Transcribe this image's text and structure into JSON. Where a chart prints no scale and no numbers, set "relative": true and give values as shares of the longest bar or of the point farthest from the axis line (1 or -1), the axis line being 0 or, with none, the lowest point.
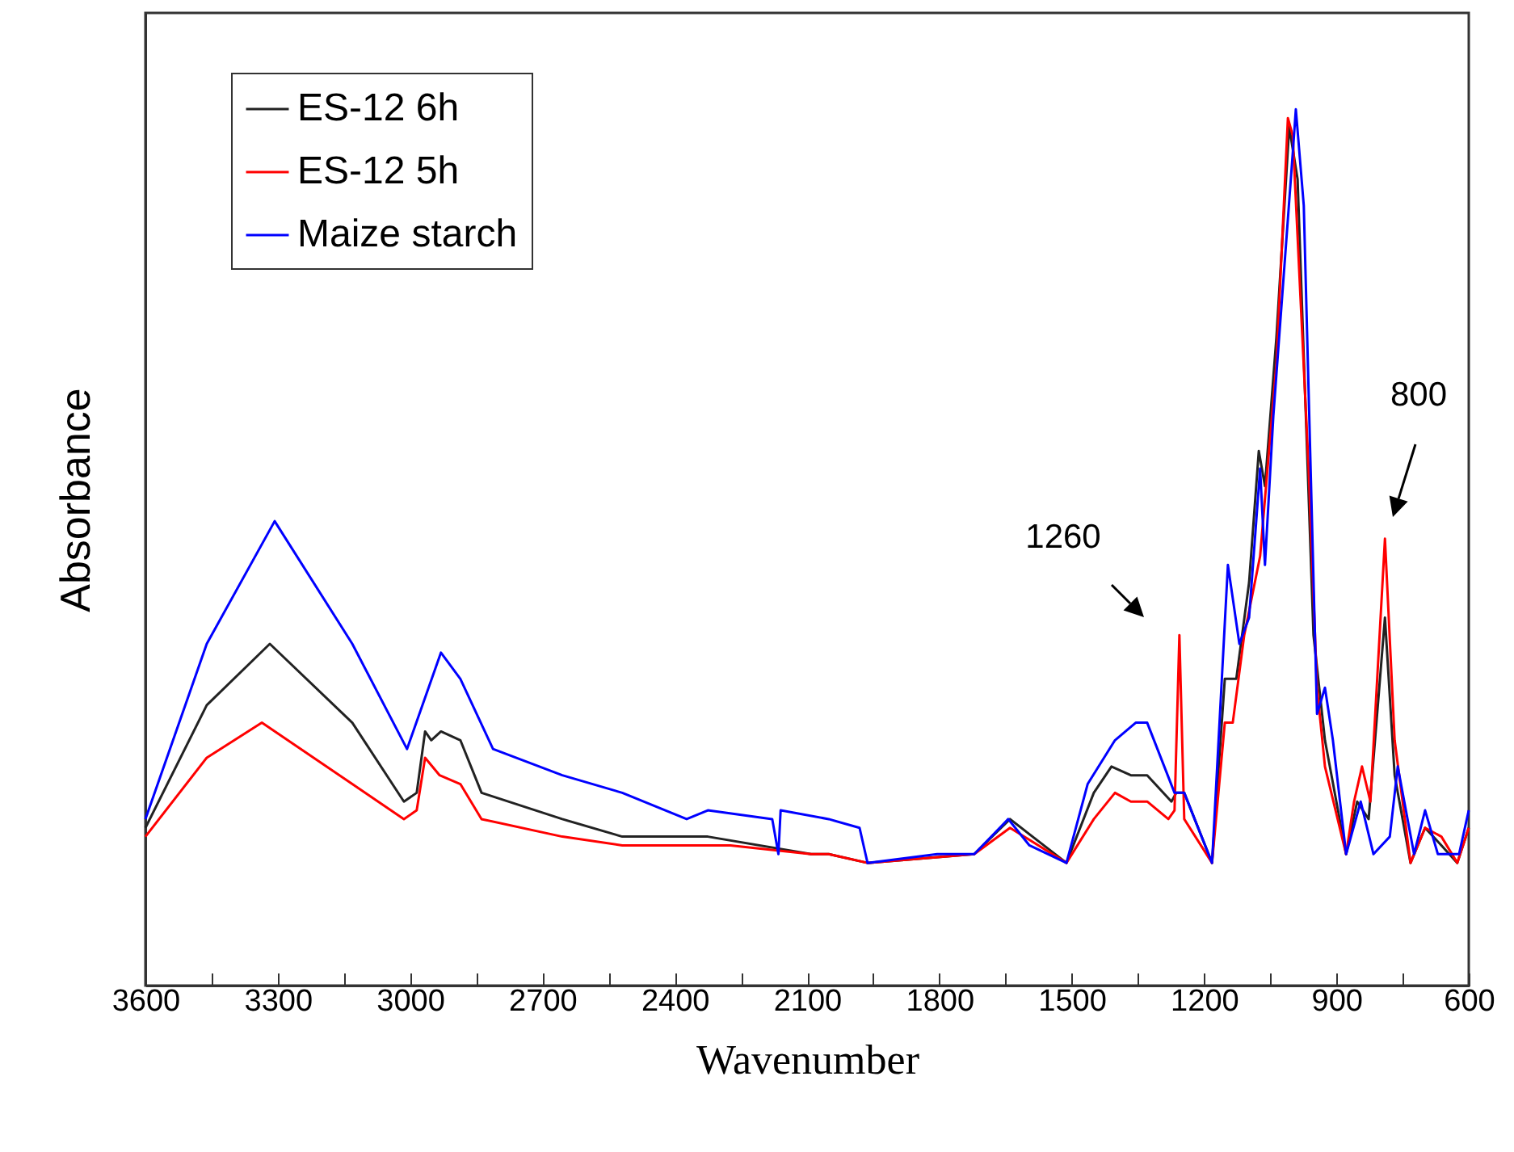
{
  "chart_data": {
    "type": "line",
    "xlabel": "Wavenumber",
    "ylabel": "Absorbance",
    "relative": true,
    "legend": "top left",
    "line_style": "solid",
    "marker": "none",
    "grid": false,
    "xlim": [
      3600,
      600
    ],
    "xticks": [
      3600,
      {
        "value": 3450,
        "label": null
      },
      3300,
      {
        "value": 3150,
        "label": null
      },
      3000,
      {
        "value": 2850,
        "label": null
      },
      2700,
      {
        "value": 2550,
        "label": null
      },
      2400,
      {
        "value": 2250,
        "label": null
      },
      2100,
      {
        "value": 1950,
        "label": null
      },
      1800,
      {
        "value": 1650,
        "label": null
      },
      1500,
      {
        "value": 1350,
        "label": null
      },
      1200,
      {
        "value": 1050,
        "label": null
      },
      900,
      {
        "value": 750,
        "label": null
      },
      600
    ],
    "annotations": [
      "1260",
      "800"
    ],
    "series": [
      {
        "name": "ES-12 6h",
        "color": "#222222",
        "x": [
          3600,
          3461,
          3318,
          3131,
          3014,
          2985,
          2966,
          2952,
          2930,
          2886,
          2838,
          2655,
          2519,
          2325,
          2091,
          2051,
          1963,
          1721,
          1640,
          1512,
          1450,
          1410,
          1366,
          1329,
          1274,
          1263,
          1245,
          1182,
          1153,
          1127,
          1098,
          1076,
          1062,
          1036,
          1007,
          988,
          952,
          926,
          878,
          853,
          827,
          790,
          768,
          732,
          699,
          662,
          626,
          600
        ],
        "values": [
          0.18,
          0.32,
          0.39,
          0.3,
          0.21,
          0.22,
          0.29,
          0.28,
          0.29,
          0.28,
          0.22,
          0.19,
          0.17,
          0.17,
          0.15,
          0.15,
          0.14,
          0.15,
          0.19,
          0.14,
          0.22,
          0.25,
          0.24,
          0.24,
          0.21,
          0.22,
          0.22,
          0.14,
          0.35,
          0.35,
          0.46,
          0.61,
          0.57,
          0.74,
          0.98,
          0.92,
          0.4,
          0.28,
          0.15,
          0.21,
          0.19,
          0.42,
          0.24,
          0.14,
          0.18,
          0.16,
          0.14,
          0.18
        ]
      },
      {
        "name": "ES-12 5h",
        "color": "#ff0000",
        "x": [
          3600,
          3461,
          3336,
          3131,
          3014,
          2985,
          2966,
          2933,
          2886,
          2838,
          2655,
          2519,
          2274,
          2091,
          2051,
          1963,
          1721,
          1640,
          1512,
          1450,
          1402,
          1366,
          1329,
          1281,
          1267,
          1256,
          1245,
          1182,
          1153,
          1135,
          1109,
          1073,
          1036,
          1010,
          999,
          963,
          944,
          926,
          878,
          860,
          842,
          823,
          790,
          768,
          732,
          699,
          662,
          626,
          600
        ],
        "values": [
          0.17,
          0.26,
          0.3,
          0.23,
          0.19,
          0.2,
          0.26,
          0.24,
          0.23,
          0.19,
          0.17,
          0.16,
          0.16,
          0.15,
          0.15,
          0.14,
          0.15,
          0.18,
          0.14,
          0.19,
          0.22,
          0.21,
          0.21,
          0.19,
          0.2,
          0.4,
          0.19,
          0.14,
          0.3,
          0.3,
          0.4,
          0.49,
          0.71,
          0.99,
          0.97,
          0.59,
          0.34,
          0.25,
          0.15,
          0.21,
          0.25,
          0.21,
          0.51,
          0.28,
          0.14,
          0.18,
          0.17,
          0.14,
          0.18
        ]
      },
      {
        "name": "Maize starch",
        "color": "#0000ff",
        "x": [
          3600,
          3461,
          3307,
          3131,
          3007,
          2930,
          2886,
          2812,
          2655,
          2519,
          2373,
          2325,
          2179,
          2165,
          2160,
          2051,
          1981,
          1963,
          1805,
          1721,
          1644,
          1596,
          1512,
          1464,
          1402,
          1355,
          1329,
          1267,
          1245,
          1182,
          1146,
          1120,
          1098,
          1073,
          1062,
          1043,
          999,
          992,
          974,
          944,
          926,
          908,
          878,
          845,
          816,
          779,
          761,
          724,
          699,
          670,
          622,
          600
        ],
        "values": [
          0.19,
          0.39,
          0.53,
          0.39,
          0.27,
          0.38,
          0.35,
          0.27,
          0.24,
          0.22,
          0.19,
          0.2,
          0.19,
          0.15,
          0.2,
          0.19,
          0.18,
          0.14,
          0.15,
          0.15,
          0.19,
          0.16,
          0.14,
          0.23,
          0.28,
          0.3,
          0.3,
          0.22,
          0.22,
          0.14,
          0.48,
          0.39,
          0.42,
          0.59,
          0.48,
          0.65,
          0.95,
          1,
          0.89,
          0.31,
          0.34,
          0.28,
          0.15,
          0.21,
          0.15,
          0.17,
          0.25,
          0.15,
          0.2,
          0.15,
          0.15,
          0.2
        ]
      }
    ]
  }
}
